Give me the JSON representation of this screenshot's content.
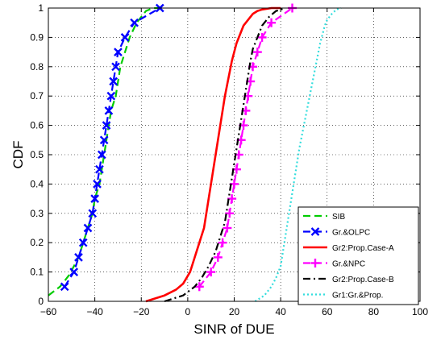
{
  "chart_data": {
    "type": "line",
    "title": "",
    "xlabel": "SINR of DUE",
    "ylabel": "CDF",
    "xlim": [
      -60,
      100
    ],
    "ylim": [
      0,
      1
    ],
    "xticks": [
      "−60",
      "−40",
      "−20",
      "0",
      "20",
      "40",
      "60",
      "80",
      "100"
    ],
    "yticks": [
      "0",
      "0.1",
      "0.2",
      "0.3",
      "0.4",
      "0.5",
      "0.6",
      "0.7",
      "0.8",
      "0.9",
      "1"
    ],
    "grid": true,
    "legend_position": "bottom-right",
    "series": [
      {
        "name": "SIB",
        "color": "#00cc00",
        "dash": "dashed",
        "marker": "none",
        "x": [
          -60,
          -55,
          -51,
          -47,
          -45,
          -43,
          -41,
          -40,
          -38,
          -37,
          -36,
          -35,
          -34,
          -33,
          -31,
          -30,
          -29,
          -27,
          -25,
          -22,
          -20,
          -18,
          -15,
          -12
        ],
        "y": [
          0.02,
          0.05,
          0.09,
          0.15,
          0.2,
          0.25,
          0.3,
          0.35,
          0.4,
          0.45,
          0.5,
          0.55,
          0.6,
          0.65,
          0.7,
          0.75,
          0.8,
          0.85,
          0.9,
          0.95,
          0.97,
          0.99,
          1.0,
          1.0
        ]
      },
      {
        "name": "Gr.&OLPC",
        "color": "#0000ff",
        "dash": "dashed",
        "marker": "x",
        "x": [
          -53,
          -49,
          -47,
          -45,
          -43,
          -41,
          -40,
          -39,
          -38,
          -37,
          -36,
          -35,
          -34,
          -33,
          -32,
          -31,
          -30,
          -27,
          -23,
          -12
        ],
        "y": [
          0.05,
          0.1,
          0.15,
          0.2,
          0.25,
          0.3,
          0.35,
          0.4,
          0.45,
          0.5,
          0.55,
          0.6,
          0.65,
          0.7,
          0.75,
          0.8,
          0.85,
          0.9,
          0.95,
          1.0
        ]
      },
      {
        "name": "Gr2:Prop.Case-A",
        "color": "#ff0000",
        "dash": "solid",
        "marker": "none",
        "x": [
          -18,
          -10,
          -5,
          -2,
          1,
          3,
          5,
          7,
          8,
          9,
          10,
          11,
          12,
          13,
          14,
          15,
          16,
          17,
          18,
          19,
          20,
          21,
          22,
          23,
          24,
          26,
          28,
          30,
          32,
          36,
          40
        ],
        "y": [
          0.0,
          0.02,
          0.04,
          0.06,
          0.1,
          0.15,
          0.2,
          0.25,
          0.3,
          0.35,
          0.4,
          0.45,
          0.5,
          0.55,
          0.6,
          0.65,
          0.7,
          0.74,
          0.78,
          0.82,
          0.85,
          0.88,
          0.9,
          0.92,
          0.94,
          0.96,
          0.98,
          0.99,
          0.995,
          1.0,
          1.0
        ]
      },
      {
        "name": "Gr.&NPC",
        "color": "#ff00ff",
        "dash": "dashed",
        "marker": "+",
        "x": [
          5,
          10,
          13,
          15,
          17,
          18,
          19,
          20,
          21,
          22,
          23,
          24,
          25,
          26,
          27,
          28,
          30,
          32,
          36,
          45
        ],
        "y": [
          0.05,
          0.1,
          0.15,
          0.2,
          0.25,
          0.3,
          0.35,
          0.4,
          0.45,
          0.5,
          0.55,
          0.6,
          0.65,
          0.7,
          0.75,
          0.8,
          0.85,
          0.9,
          0.95,
          1.0
        ]
      },
      {
        "name": "Gr2:Prop.Case-B",
        "color": "#000000",
        "dash": "dashdot",
        "marker": "none",
        "x": [
          -10,
          -2,
          3,
          6,
          9,
          12,
          14,
          16,
          17,
          18,
          19,
          20,
          21,
          22,
          23,
          24,
          25,
          26,
          27,
          28,
          30,
          32,
          35,
          38,
          42
        ],
        "y": [
          0.0,
          0.02,
          0.05,
          0.08,
          0.12,
          0.17,
          0.22,
          0.27,
          0.32,
          0.37,
          0.42,
          0.47,
          0.52,
          0.57,
          0.62,
          0.67,
          0.72,
          0.77,
          0.82,
          0.86,
          0.9,
          0.94,
          0.97,
          0.99,
          1.0
        ]
      },
      {
        "name": "Gr1:Gr.&Prop.",
        "color": "#33dddd",
        "dash": "dotted",
        "marker": "none",
        "x": [
          29,
          33,
          36,
          38,
          40,
          41,
          42,
          43,
          44,
          45,
          46,
          47,
          48,
          49,
          50,
          51,
          52,
          53,
          54,
          55,
          56,
          57,
          58,
          59,
          60,
          62,
          64,
          66
        ],
        "y": [
          0.0,
          0.02,
          0.05,
          0.08,
          0.12,
          0.17,
          0.22,
          0.27,
          0.32,
          0.37,
          0.42,
          0.47,
          0.52,
          0.56,
          0.6,
          0.64,
          0.68,
          0.72,
          0.76,
          0.8,
          0.84,
          0.88,
          0.91,
          0.94,
          0.96,
          0.98,
          0.995,
          1.0
        ]
      }
    ]
  }
}
